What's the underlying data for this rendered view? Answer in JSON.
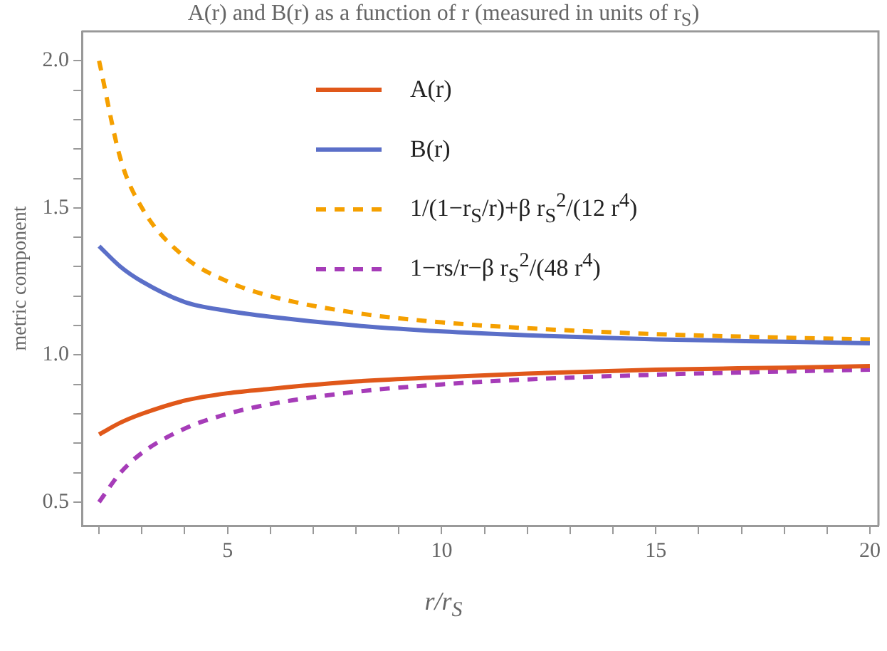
{
  "chart_data": {
    "type": "line",
    "title": "A(r) and B(r) as a function of r (measured in units of r$_{S}$)",
    "xlabel": "r/r$_{S}$",
    "ylabel": "metric component",
    "x": [
      2,
      2.5,
      3,
      4,
      5,
      6,
      8,
      10,
      12,
      15,
      18,
      20
    ],
    "series": [
      {
        "name": "A(r)",
        "color": "#e0581a",
        "line_style": "solid",
        "values": [
          0.73,
          0.77,
          0.8,
          0.845,
          0.87,
          0.885,
          0.91,
          0.925,
          0.937,
          0.95,
          0.957,
          0.962
        ]
      },
      {
        "name": "B(r)",
        "color": "#5b6fc8",
        "line_style": "solid",
        "values": [
          1.37,
          1.3,
          1.25,
          1.18,
          1.15,
          1.13,
          1.1,
          1.08,
          1.067,
          1.053,
          1.045,
          1.04
        ]
      },
      {
        "name": "1/(1−r$_{S}$/r)+β r$_{S}$$^{2}$/(12 r$^{4}$)",
        "color": "#f5a000",
        "line_style": "dashed",
        "values": [
          2.0,
          1.667,
          1.5,
          1.333,
          1.25,
          1.2,
          1.143,
          1.111,
          1.091,
          1.071,
          1.059,
          1.053
        ]
      },
      {
        "name": "1−rs/r−β r$_{S}$$^{2}$/(48 r$^{4}$)",
        "color": "#a63cb8",
        "line_style": "dashed",
        "values": [
          0.5,
          0.6,
          0.667,
          0.75,
          0.8,
          0.833,
          0.875,
          0.9,
          0.917,
          0.933,
          0.944,
          0.95
        ]
      }
    ],
    "xlim": [
      1.6,
      20.2
    ],
    "ylim": [
      0.42,
      2.1
    ],
    "xticks": [
      {
        "value": 2,
        "label": null
      },
      {
        "value": 3,
        "label": null
      },
      {
        "value": 4,
        "label": null
      },
      5,
      {
        "value": 6,
        "label": null
      },
      {
        "value": 7,
        "label": null
      },
      {
        "value": 8,
        "label": null
      },
      {
        "value": 9,
        "label": null
      },
      10,
      {
        "value": 11,
        "label": null
      },
      {
        "value": 12,
        "label": null
      },
      {
        "value": 13,
        "label": null
      },
      {
        "value": 14,
        "label": null
      },
      15,
      {
        "value": 16,
        "label": null
      },
      {
        "value": 17,
        "label": null
      },
      {
        "value": 18,
        "label": null
      },
      {
        "value": 19,
        "label": null
      },
      20
    ],
    "yticks": [
      {
        "value": 0.5,
        "label": "0.5"
      },
      {
        "value": 0.6,
        "label": null
      },
      {
        "value": 0.7,
        "label": null
      },
      {
        "value": 0.8,
        "label": null
      },
      {
        "value": 0.9,
        "label": null
      },
      {
        "value": 1,
        "label": "1.0"
      },
      {
        "value": 1.1,
        "label": null
      },
      {
        "value": 1.2,
        "label": null
      },
      {
        "value": 1.3,
        "label": null
      },
      {
        "value": 1.4,
        "label": null
      },
      {
        "value": 1.5,
        "label": "1.5"
      },
      {
        "value": 1.6,
        "label": null
      },
      {
        "value": 1.7,
        "label": null
      },
      {
        "value": 1.8,
        "label": null
      },
      {
        "value": 1.9,
        "label": null
      },
      {
        "value": 2,
        "label": "2.0"
      }
    ],
    "legend": "top",
    "marker": "none"
  }
}
